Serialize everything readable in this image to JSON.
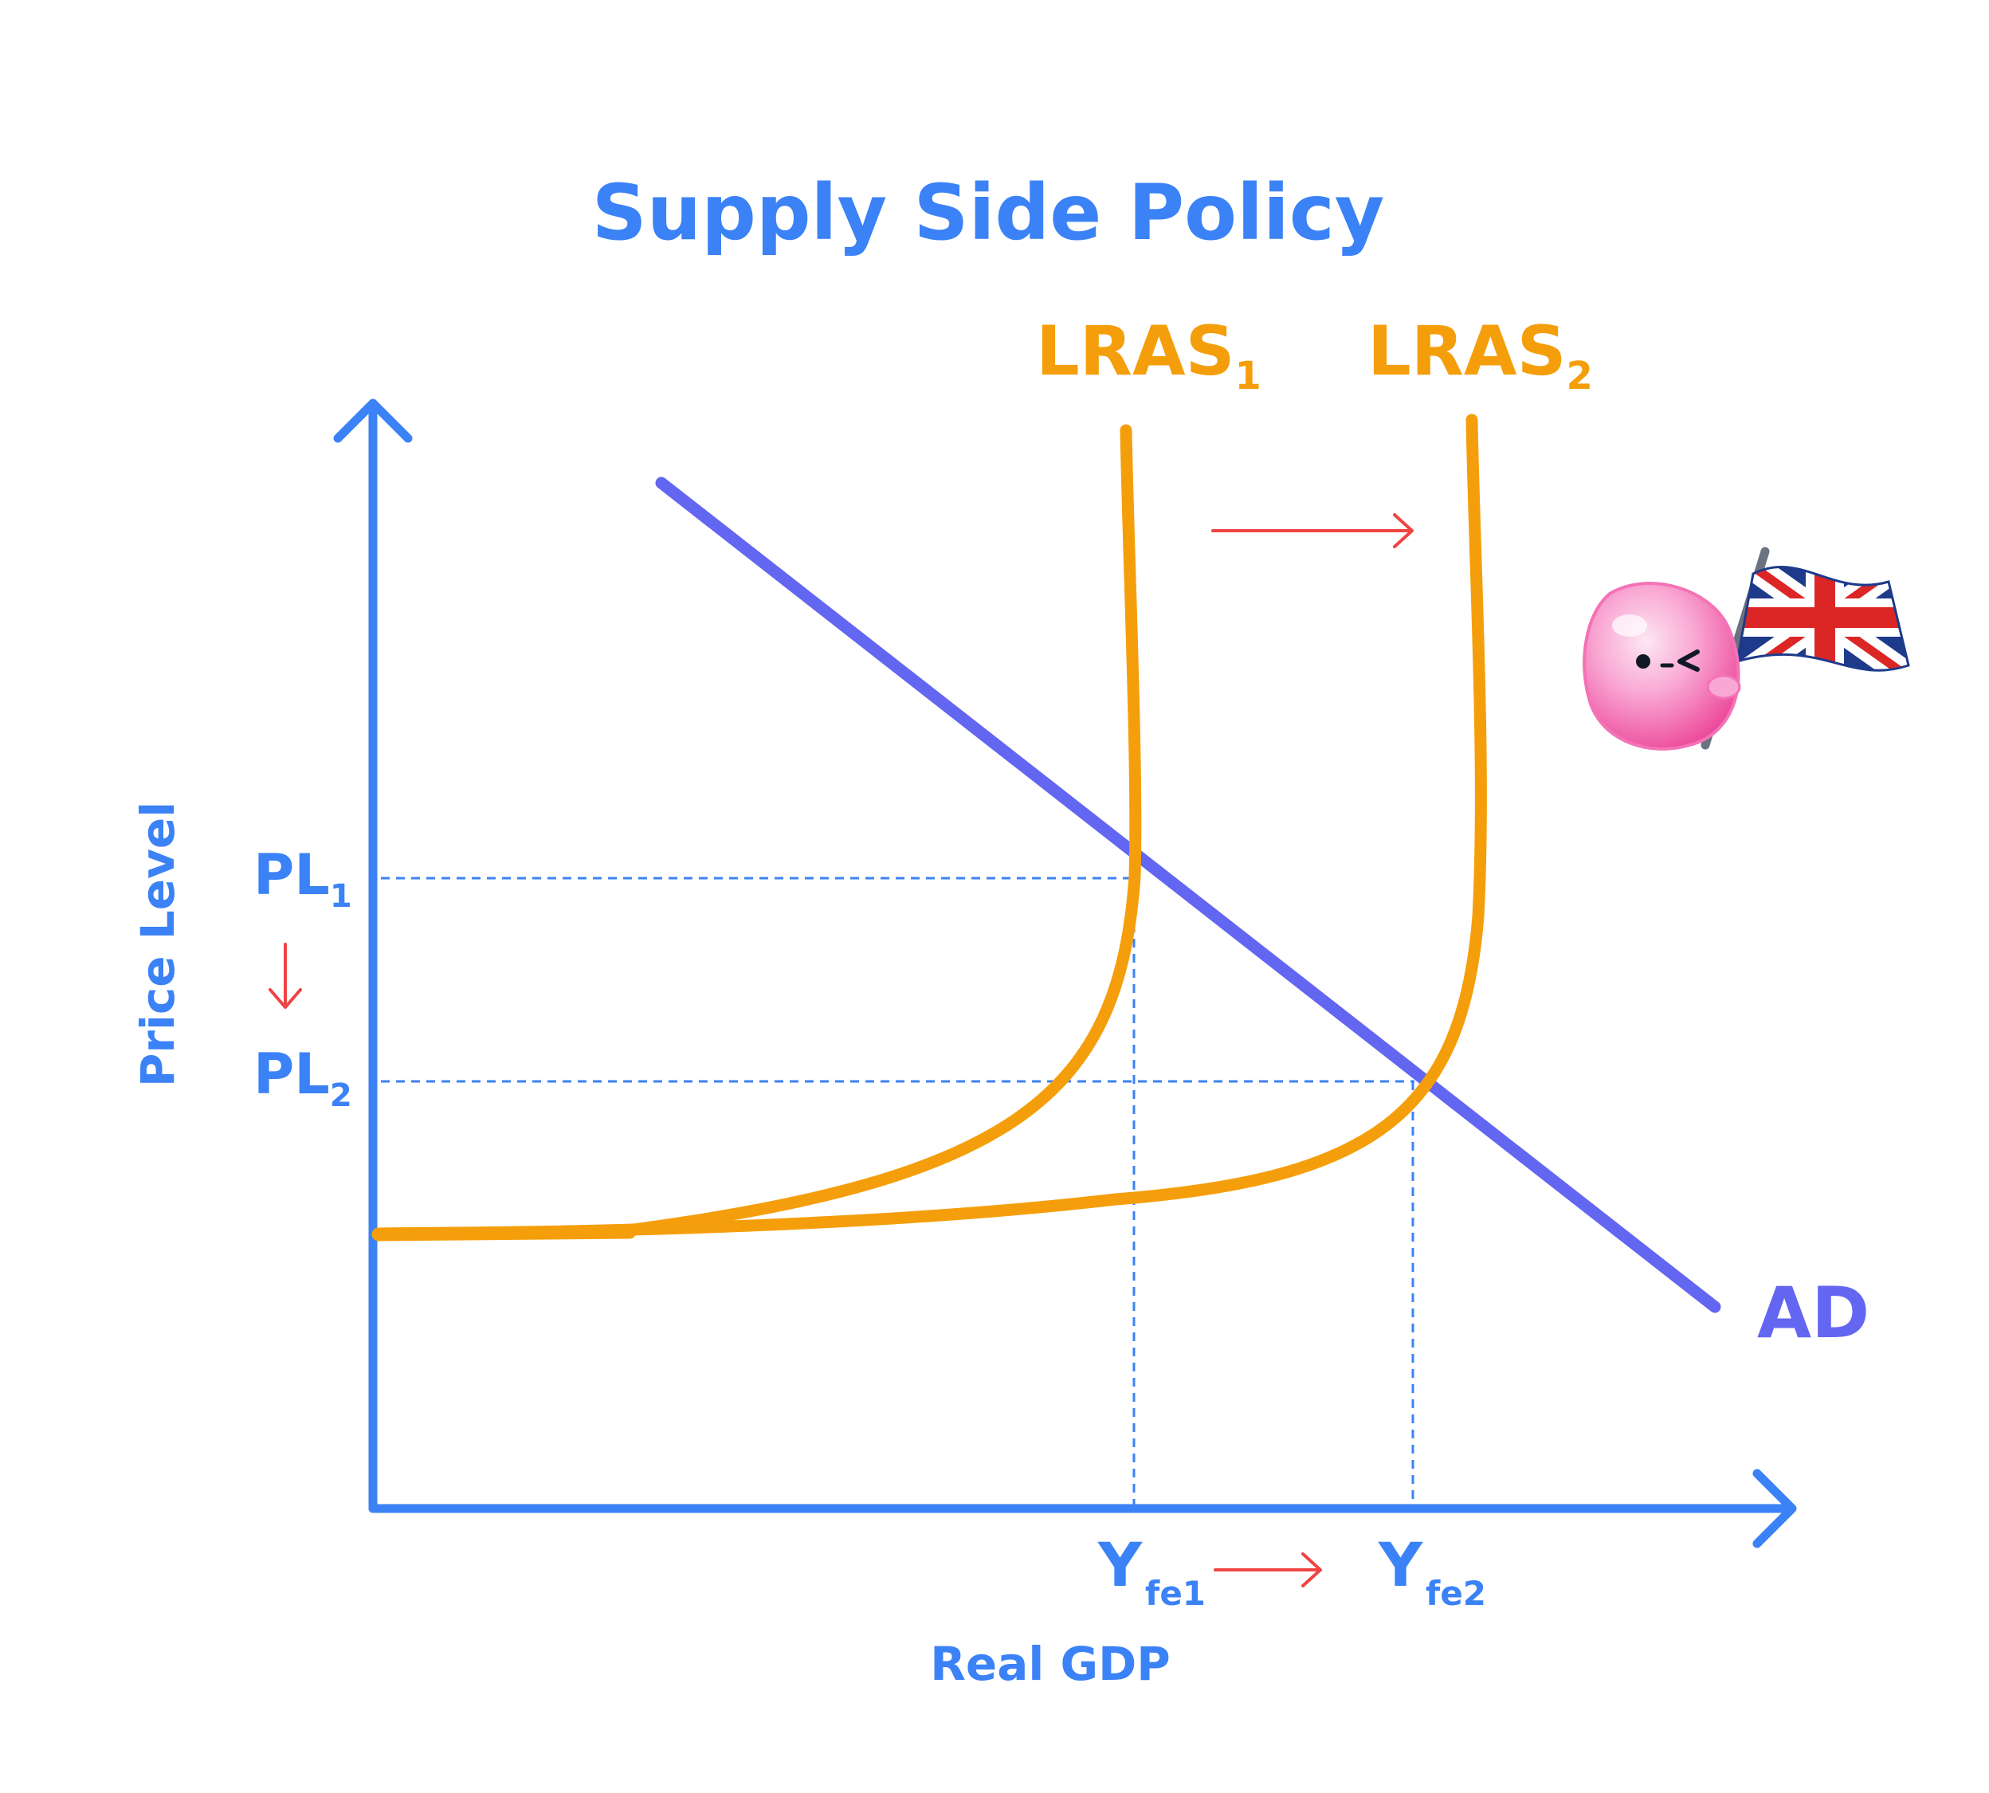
{
  "title": "Supply Side Policy",
  "x_axis_label": "Real GDP",
  "y_axis_label": "Price Level",
  "curves": {
    "ad": {
      "label": "AD",
      "color": "#6366f1"
    },
    "lras1": {
      "label_main": "LRAS",
      "label_sub": "1",
      "color": "#f59e0b"
    },
    "lras2": {
      "label_main": "LRAS",
      "label_sub": "2",
      "color": "#f59e0b"
    }
  },
  "price_levels": {
    "pl1": {
      "main": "PL",
      "sub": "1"
    },
    "pl2": {
      "main": "PL",
      "sub": "2"
    }
  },
  "outputs": {
    "yfe1": {
      "main": "Y",
      "sub": "fe1"
    },
    "yfe2": {
      "main": "Y",
      "sub": "fe2"
    }
  },
  "colors": {
    "axis": "#3b82f6",
    "text_blue": "#3b82f6",
    "guide": "#3b82f6",
    "arrow_red": "#ef4444",
    "mascot_pink": "#f9a8d4"
  },
  "mascot": {
    "icon": "pink-blob-mascot-icon",
    "flag_icon": "union-jack-flag-icon"
  }
}
